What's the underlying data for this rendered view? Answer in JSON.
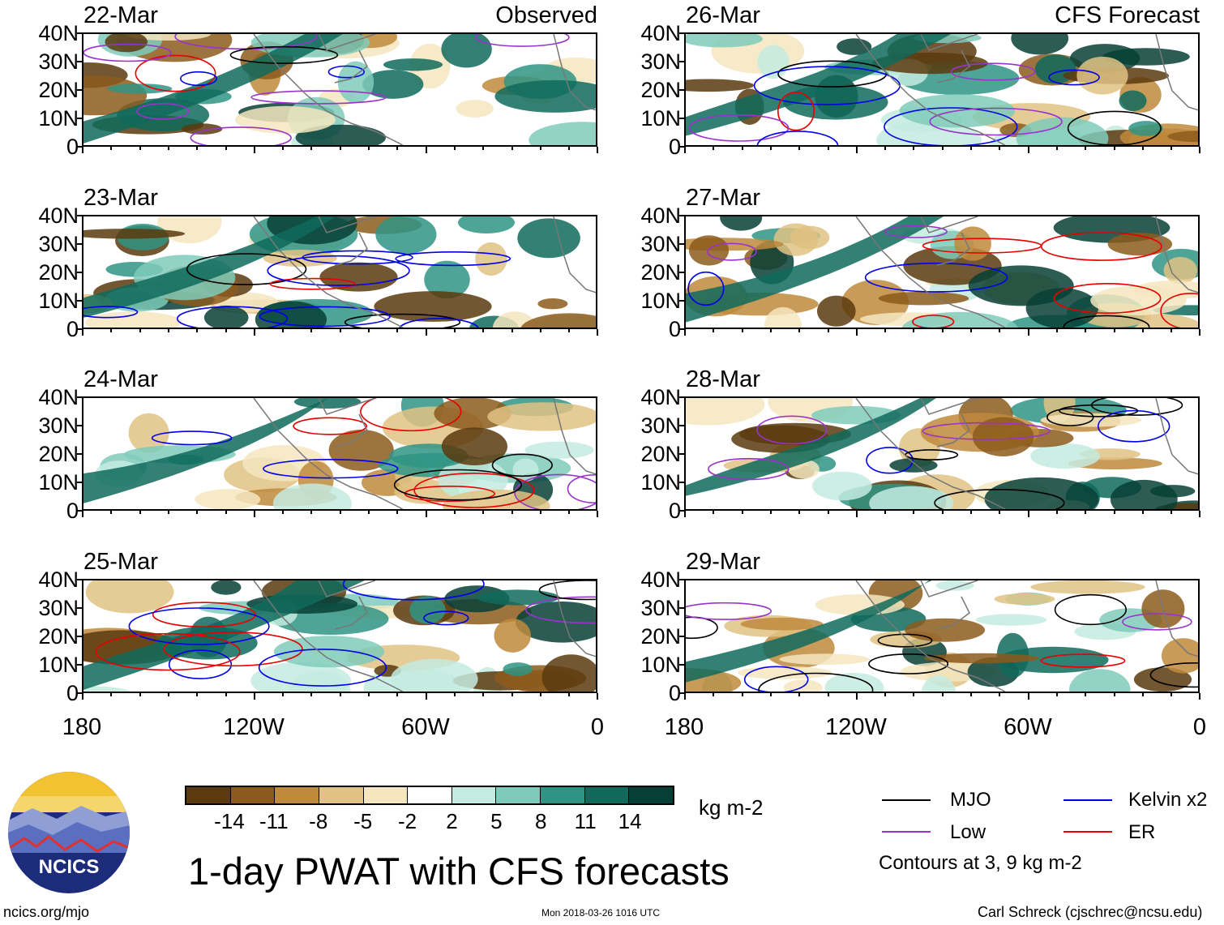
{
  "panels": {
    "observed": [
      {
        "date": "22-Mar"
      },
      {
        "date": "23-Mar"
      },
      {
        "date": "24-Mar"
      },
      {
        "date": "25-Mar"
      }
    ],
    "forecast": [
      {
        "date": "26-Mar"
      },
      {
        "date": "27-Mar"
      },
      {
        "date": "28-Mar"
      },
      {
        "date": "29-Mar"
      }
    ],
    "observed_label": "Observed",
    "forecast_label": "CFS Forecast"
  },
  "axes": {
    "lat_labels": [
      "40N",
      "30N",
      "20N",
      "10N",
      "0"
    ],
    "lon_labels": [
      "180",
      "120W",
      "60W",
      "0"
    ]
  },
  "colorbar": {
    "labels": [
      "-14",
      "-11",
      "-8",
      "-5",
      "-2",
      "2",
      "5",
      "8",
      "11",
      "14"
    ],
    "colors": [
      "#5a3a0e",
      "#8c5a1c",
      "#bf8a3c",
      "#e0c284",
      "#f5e6c0",
      "#ffffff",
      "#c4ebe1",
      "#7fcbbb",
      "#2f9484",
      "#0f6a5c",
      "#073f36"
    ],
    "unit": "kg m-2"
  },
  "title": "1-day PWAT with CFS forecasts",
  "legend": {
    "items": [
      {
        "label": "MJO",
        "color": "#000000"
      },
      {
        "label": "Kelvin x2",
        "color": "#0000e6"
      },
      {
        "label": "Low",
        "color": "#9933cc"
      },
      {
        "label": "ER",
        "color": "#e60000"
      }
    ],
    "note": "Contours at 3, 9 kg m-2"
  },
  "logo_text": "NCICS",
  "footer": {
    "url": "ncics.org/mjo",
    "timestamp": "Mon 2018-03-26 1016 UTC",
    "credit": "Carl Schreck (cjschrec@ncsu.edu)"
  }
}
